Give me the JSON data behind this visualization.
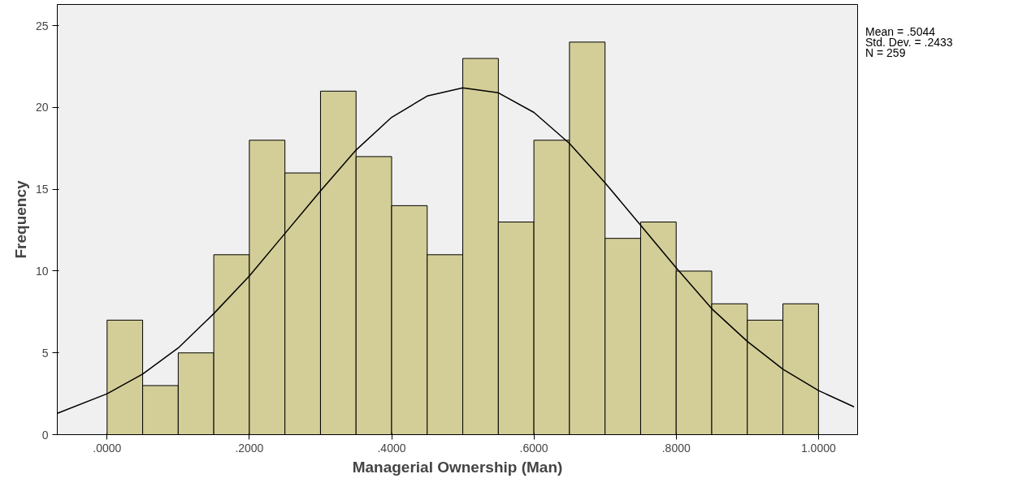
{
  "chart_data": {
    "type": "histogram",
    "xlabel": "Managerial Ownership (Man)",
    "ylabel": "Frequency",
    "bins": [
      0,
      0.05,
      0.1,
      0.15,
      0.2,
      0.25,
      0.3,
      0.35,
      0.4,
      0.45,
      0.5,
      0.55,
      0.6,
      0.65,
      0.7,
      0.75,
      0.8,
      0.85,
      0.9,
      0.95,
      1.0
    ],
    "values": [
      7,
      3,
      5,
      11,
      18,
      16,
      21,
      17,
      14,
      11,
      23,
      13,
      18,
      24,
      12,
      13,
      10,
      8,
      7,
      8
    ],
    "color": "#d3ce97",
    "series": [
      {
        "type": "line",
        "color": "#000000",
        "x": [
          -0.07,
          0,
          0.05,
          0.1,
          0.15,
          0.2,
          0.25,
          0.3,
          0.35,
          0.4,
          0.45,
          0.5,
          0.55,
          0.6,
          0.65,
          0.7,
          0.75,
          0.8,
          0.85,
          0.9,
          0.95,
          1.0,
          1.05
        ],
        "values": [
          1.3,
          2.5,
          3.7,
          5.3,
          7.4,
          9.7,
          12.3,
          14.9,
          17.4,
          19.4,
          20.7,
          21.2,
          20.9,
          19.7,
          17.8,
          15.4,
          12.8,
          10.2,
          7.7,
          5.7,
          4.0,
          2.7,
          1.7
        ]
      }
    ],
    "xlim": [
      -0.07,
      1.055
    ],
    "ylim": [
      0,
      26.3
    ],
    "xticks": [
      {
        "value": 0,
        "label": ".0000"
      },
      {
        "value": 0.2,
        "label": ".2000"
      },
      {
        "value": 0.4,
        "label": ".4000"
      },
      {
        "value": 0.6,
        "label": ".6000"
      },
      {
        "value": 0.8,
        "label": ".8000"
      },
      {
        "value": 1.0,
        "label": "1.0000"
      }
    ],
    "yticks": [
      0,
      5,
      10,
      15,
      20,
      25
    ],
    "grid": false,
    "annotations": [
      "Mean = .5044",
      "Std. Dev. = .2433",
      "N = 259"
    ]
  }
}
